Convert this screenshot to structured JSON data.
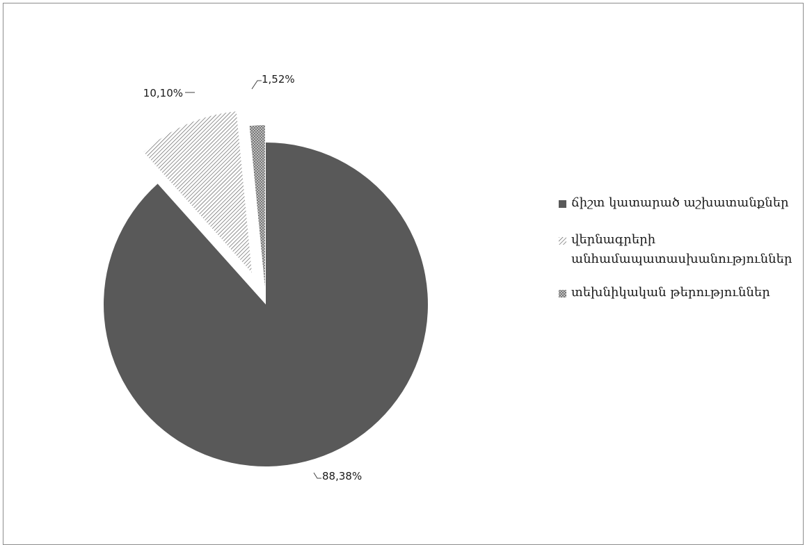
{
  "chart_data": {
    "type": "pie",
    "title": "",
    "slices": [
      {
        "label": "ճիշտ կատարած աշխատանքներ",
        "value": 88.38,
        "display": "88,38%",
        "color": "#595959",
        "pattern": "solid"
      },
      {
        "label": "վերնագրերի անհամապատասխանություններ",
        "value": 10.1,
        "display": "10,10%",
        "color": "#595959",
        "pattern": "diagonal-stripes"
      },
      {
        "label": "տեխնիկական թերություններ",
        "value": 1.52,
        "display": "1,52%",
        "color": "#6f6f6f",
        "pattern": "crosshatch"
      }
    ],
    "legend_position": "right",
    "exploded": true
  },
  "legend": [
    {
      "lines": [
        "ճիշտ կատարած աշխատանքներ"
      ]
    },
    {
      "lines": [
        "վերնագրերի",
        "անհամապատասխանություններ"
      ]
    },
    {
      "lines": [
        "տեխնիկական թերություններ"
      ]
    }
  ]
}
